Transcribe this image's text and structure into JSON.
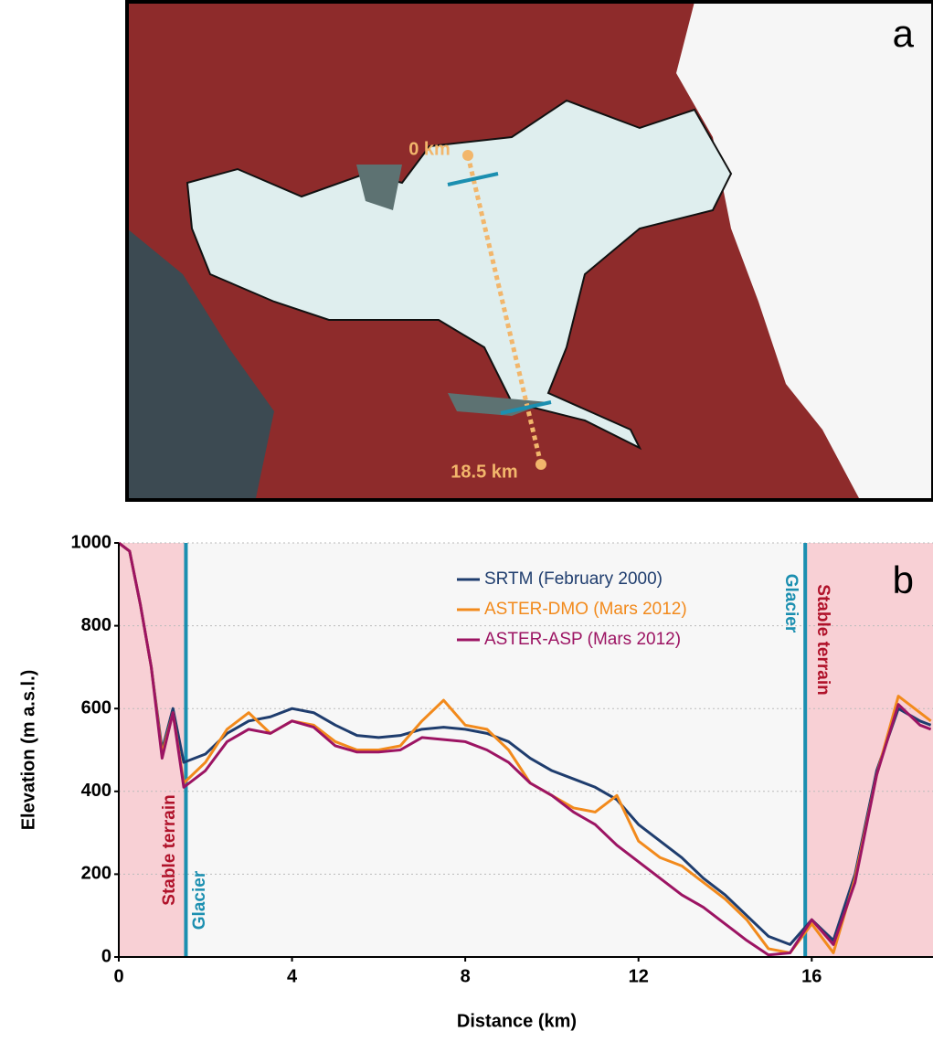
{
  "panel_a": {
    "label": "a",
    "start_label": "0 km",
    "end_label": "18.5 km"
  },
  "chart_data": {
    "type": "line",
    "panel_label": "b",
    "x_label": "Distance (km)",
    "y_label": "Elevation (m a.s.l.)",
    "x": [
      0,
      0.25,
      0.5,
      0.75,
      1,
      1.25,
      1.5,
      2,
      2.5,
      3,
      3.5,
      4,
      4.5,
      5,
      5.5,
      6,
      6.5,
      7,
      7.5,
      8,
      8.5,
      9,
      9.5,
      10,
      10.5,
      11,
      11.5,
      12,
      12.5,
      13,
      13.5,
      14,
      14.5,
      15,
      15.5,
      16,
      16.5,
      17,
      17.5,
      18,
      18.5,
      18.75
    ],
    "series": [
      {
        "name": "SRTM (February 2000)",
        "color": "#1f3d6e",
        "values": [
          1000,
          980,
          850,
          700,
          500,
          600,
          470,
          490,
          540,
          570,
          580,
          600,
          590,
          560,
          535,
          530,
          535,
          550,
          555,
          550,
          540,
          520,
          480,
          450,
          430,
          410,
          380,
          320,
          280,
          240,
          190,
          150,
          100,
          50,
          30,
          90,
          40,
          200,
          450,
          600,
          570,
          560
        ]
      },
      {
        "name": "ASTER-DMO (Mars 2012)",
        "color": "#f28a1c",
        "values": [
          1000,
          980,
          850,
          700,
          490,
          590,
          420,
          470,
          550,
          590,
          540,
          570,
          560,
          520,
          500,
          500,
          510,
          570,
          620,
          560,
          550,
          500,
          420,
          390,
          360,
          350,
          390,
          280,
          240,
          220,
          180,
          140,
          90,
          20,
          10,
          80,
          10,
          190,
          440,
          630,
          590,
          570
        ]
      },
      {
        "name": "ASTER-ASP (Mars 2012)",
        "color": "#9c1463",
        "values": [
          1000,
          980,
          850,
          700,
          480,
          590,
          410,
          450,
          520,
          550,
          540,
          570,
          555,
          510,
          495,
          495,
          500,
          530,
          525,
          520,
          500,
          470,
          420,
          390,
          350,
          320,
          270,
          230,
          190,
          150,
          120,
          80,
          40,
          5,
          10,
          90,
          30,
          180,
          440,
          610,
          560,
          550
        ]
      }
    ],
    "xlim": [
      0,
      18.8
    ],
    "ylim": [
      0,
      1000
    ],
    "xticks": [
      0,
      4,
      8,
      12,
      16
    ],
    "yticks": [
      0,
      200,
      400,
      600,
      800,
      1000
    ],
    "grid": true,
    "vlines": [
      1.55,
      15.85
    ],
    "vline_color": "#1b8fb0",
    "annotations": [
      "Stable terrain",
      "Glacier",
      "Glacier",
      "Stable terrain"
    ]
  }
}
